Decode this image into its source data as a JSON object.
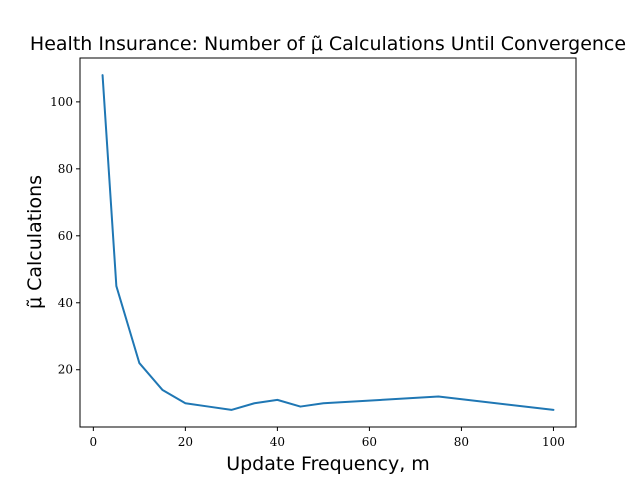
{
  "chart_data": {
    "type": "line",
    "title": "Health Insurance: Number of μ̃ Calculations Until Convergence",
    "xlabel": "Update Frequency, m",
    "ylabel": "μ̃ Calculations",
    "xlim": [
      -2.9,
      104.9
    ],
    "ylim": [
      2.9,
      113.1
    ],
    "xticks": [
      0,
      20,
      40,
      60,
      80,
      100
    ],
    "yticks": [
      20,
      40,
      60,
      80,
      100
    ],
    "grid": false,
    "series": [
      {
        "color": "#1f77b4",
        "x": [
          2,
          5,
          10,
          15,
          20,
          25,
          30,
          35,
          40,
          45,
          50,
          75,
          100
        ],
        "y": [
          108,
          45,
          22,
          14,
          10,
          9,
          8,
          10,
          11,
          9,
          10,
          12,
          8
        ]
      }
    ]
  }
}
